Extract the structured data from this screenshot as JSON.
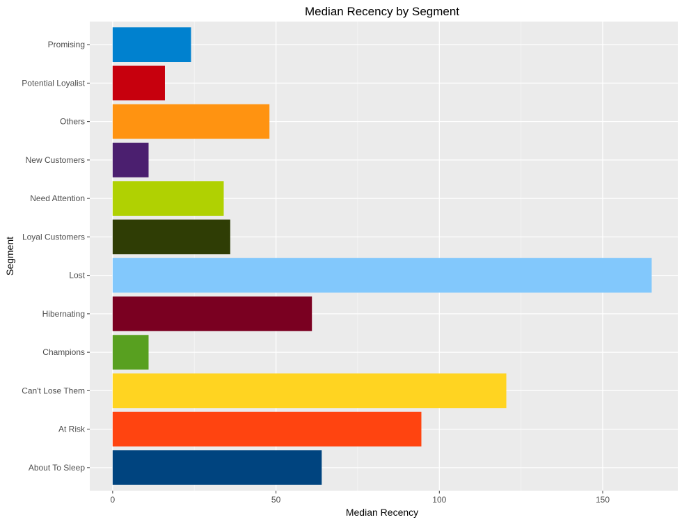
{
  "chart_data": {
    "type": "bar",
    "orientation": "horizontal",
    "title": "Median Recency by Segment",
    "xlabel": "Median Recency",
    "ylabel": "Segment",
    "xlim": [
      -7,
      173
    ],
    "x_ticks": [
      0,
      50,
      100,
      150
    ],
    "grid": true,
    "legend": "none",
    "categories": [
      "About To Sleep",
      "At Risk",
      "Can't Lose Them",
      "Champions",
      "Hibernating",
      "Lost",
      "Loyal Customers",
      "Need Attention",
      "New Customers",
      "Others",
      "Potential Loyalist",
      "Promising"
    ],
    "values": [
      64,
      94.5,
      120.5,
      11,
      61,
      165,
      36,
      34,
      11,
      48,
      16,
      24
    ],
    "colors": [
      "#00447F",
      "#FF4410",
      "#FFD421",
      "#58A020",
      "#7A0021",
      "#82C8FC",
      "#2F3D05",
      "#B0D102",
      "#4B1F6F",
      "#FF9311",
      "#C7000D",
      "#0081CF"
    ]
  }
}
